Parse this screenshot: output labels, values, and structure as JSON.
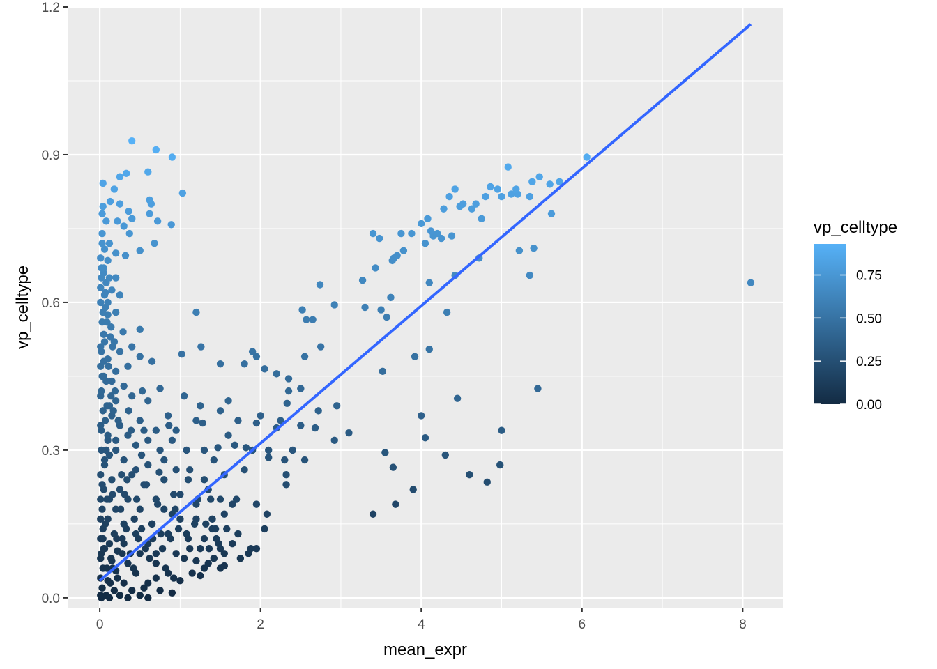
{
  "chart_data": {
    "type": "scatter",
    "title": "",
    "xlabel": "mean_expr",
    "ylabel": "vp_celltype",
    "xlim": [
      -0.4,
      8.5
    ],
    "ylim": [
      -0.02,
      1.2
    ],
    "x_ticks": [
      {
        "value": 0,
        "label": "0"
      },
      {
        "value": 2,
        "label": "2"
      },
      {
        "value": 4,
        "label": "4"
      },
      {
        "value": 6,
        "label": "6"
      },
      {
        "value": 8,
        "label": "8"
      }
    ],
    "y_ticks": [
      {
        "value": 0.0,
        "label": "0.0"
      },
      {
        "value": 0.3,
        "label": "0.3"
      },
      {
        "value": 0.6,
        "label": "0.6"
      },
      {
        "value": 0.9,
        "label": "0.9"
      },
      {
        "value": 1.2,
        "label": "1.2"
      }
    ],
    "grid": true,
    "panel_background": "#ebebeb",
    "point_color_low": "#132b43",
    "point_color_high": "#56b1f7",
    "legend": {
      "title": "vp_celltype",
      "placement": "right",
      "limits": [
        0.0,
        0.93
      ],
      "ticks": [
        {
          "value": 0.0,
          "label": "0.00"
        },
        {
          "value": 0.25,
          "label": "0.25"
        },
        {
          "value": 0.5,
          "label": "0.50"
        },
        {
          "value": 0.75,
          "label": "0.75"
        }
      ]
    },
    "trend_line": {
      "color": "#3366ff",
      "start": {
        "x": 0.0,
        "y": 0.035
      },
      "end": {
        "x": 8.1,
        "y": 1.165
      }
    },
    "points": [
      [
        0.4,
        0.928
      ],
      [
        0.7,
        0.91
      ],
      [
        0.9,
        0.895
      ],
      [
        0.33,
        0.862
      ],
      [
        0.6,
        0.865
      ],
      [
        0.25,
        0.855
      ],
      [
        0.04,
        0.842
      ],
      [
        0.18,
        0.83
      ],
      [
        1.03,
        0.822
      ],
      [
        0.13,
        0.805
      ],
      [
        0.62,
        0.808
      ],
      [
        0.25,
        0.8
      ],
      [
        0.04,
        0.795
      ],
      [
        0.64,
        0.8
      ],
      [
        0.03,
        0.78
      ],
      [
        0.36,
        0.785
      ],
      [
        0.4,
        0.77
      ],
      [
        0.62,
        0.78
      ],
      [
        0.72,
        0.765
      ],
      [
        0.22,
        0.765
      ],
      [
        0.08,
        0.765
      ],
      [
        0.3,
        0.755
      ],
      [
        0.89,
        0.758
      ],
      [
        0.37,
        0.74
      ],
      [
        0.03,
        0.74
      ],
      [
        0.68,
        0.72
      ],
      [
        0.12,
        0.72
      ],
      [
        0.06,
        0.708
      ],
      [
        0.5,
        0.705
      ],
      [
        0.2,
        0.7
      ],
      [
        0.32,
        0.695
      ],
      [
        0.01,
        0.69
      ],
      [
        0.1,
        0.685
      ],
      [
        0.02,
        0.67
      ],
      [
        0.05,
        0.66
      ],
      [
        0.12,
        0.65
      ],
      [
        0.2,
        0.65
      ],
      [
        0.08,
        0.64
      ],
      [
        0.01,
        0.63
      ],
      [
        0.15,
        0.625
      ],
      [
        0.06,
        0.615
      ],
      [
        0.25,
        0.615
      ],
      [
        0.01,
        0.6
      ],
      [
        0.07,
        0.59
      ],
      [
        0.2,
        0.58
      ],
      [
        0.1,
        0.575
      ],
      [
        0.03,
        0.56
      ],
      [
        0.14,
        0.55
      ],
      [
        0.5,
        0.545
      ],
      [
        0.29,
        0.54
      ],
      [
        0.05,
        0.535
      ],
      [
        0.18,
        0.52
      ],
      [
        0.01,
        0.51
      ],
      [
        0.4,
        0.51
      ],
      [
        0.25,
        0.5
      ],
      [
        0.5,
        0.49
      ],
      [
        0.1,
        0.485
      ],
      [
        0.65,
        0.48
      ],
      [
        0.01,
        0.47
      ],
      [
        0.2,
        0.46
      ],
      [
        0.35,
        0.47
      ],
      [
        0.05,
        0.45
      ],
      [
        0.15,
        0.44
      ],
      [
        0.3,
        0.43
      ],
      [
        0.53,
        0.42
      ],
      [
        0.75,
        0.425
      ],
      [
        0.01,
        0.41
      ],
      [
        0.2,
        0.4
      ],
      [
        0.4,
        0.41
      ],
      [
        0.09,
        0.39
      ],
      [
        0.6,
        0.4
      ],
      [
        0.36,
        0.38
      ],
      [
        0.15,
        0.37
      ],
      [
        0.5,
        0.36
      ],
      [
        0.85,
        0.37
      ],
      [
        0.01,
        0.35
      ],
      [
        0.25,
        0.35
      ],
      [
        0.55,
        0.34
      ],
      [
        0.7,
        0.34
      ],
      [
        0.1,
        0.32
      ],
      [
        0.35,
        0.33
      ],
      [
        0.9,
        0.32
      ],
      [
        0.02,
        0.3
      ],
      [
        0.2,
        0.3
      ],
      [
        0.45,
        0.31
      ],
      [
        0.75,
        0.3
      ],
      [
        0.06,
        0.28
      ],
      [
        0.3,
        0.28
      ],
      [
        0.6,
        0.27
      ],
      [
        0.95,
        0.26
      ],
      [
        0.01,
        0.25
      ],
      [
        0.15,
        0.24
      ],
      [
        0.4,
        0.25
      ],
      [
        0.8,
        0.24
      ],
      [
        0.05,
        0.22
      ],
      [
        0.25,
        0.22
      ],
      [
        0.55,
        0.23
      ],
      [
        1.1,
        0.24
      ],
      [
        0.01,
        0.2
      ],
      [
        0.12,
        0.2
      ],
      [
        0.35,
        0.2
      ],
      [
        0.7,
        0.2
      ],
      [
        1.0,
        0.21
      ],
      [
        0.03,
        0.18
      ],
      [
        0.2,
        0.18
      ],
      [
        0.5,
        0.18
      ],
      [
        0.9,
        0.17
      ],
      [
        0.01,
        0.16
      ],
      [
        0.1,
        0.16
      ],
      [
        0.3,
        0.15
      ],
      [
        0.65,
        0.15
      ],
      [
        1.2,
        0.16
      ],
      [
        0.04,
        0.14
      ],
      [
        0.18,
        0.13
      ],
      [
        0.45,
        0.13
      ],
      [
        0.85,
        0.13
      ],
      [
        1.4,
        0.14
      ],
      [
        0.01,
        0.12
      ],
      [
        0.12,
        0.11
      ],
      [
        0.3,
        0.11
      ],
      [
        0.6,
        0.11
      ],
      [
        1.1,
        0.12
      ],
      [
        0.06,
        0.1
      ],
      [
        0.22,
        0.095
      ],
      [
        0.5,
        0.09
      ],
      [
        0.95,
        0.09
      ],
      [
        1.5,
        0.1
      ],
      [
        0.01,
        0.08
      ],
      [
        0.15,
        0.075
      ],
      [
        0.35,
        0.07
      ],
      [
        0.7,
        0.07
      ],
      [
        1.2,
        0.075
      ],
      [
        0.04,
        0.06
      ],
      [
        0.2,
        0.055
      ],
      [
        0.45,
        0.05
      ],
      [
        0.85,
        0.05
      ],
      [
        1.3,
        0.06
      ],
      [
        0.01,
        0.04
      ],
      [
        0.1,
        0.035
      ],
      [
        0.3,
        0.03
      ],
      [
        0.6,
        0.03
      ],
      [
        1.0,
        0.035
      ],
      [
        0.03,
        0.02
      ],
      [
        0.18,
        0.015
      ],
      [
        0.4,
        0.015
      ],
      [
        0.75,
        0.015
      ],
      [
        0.01,
        0.005
      ],
      [
        0.08,
        0.005
      ],
      [
        0.25,
        0.005
      ],
      [
        0.5,
        0.005
      ],
      [
        0.9,
        0.01
      ],
      [
        0.02,
        0.0
      ],
      [
        0.12,
        0.0
      ],
      [
        0.35,
        0.0
      ],
      [
        0.6,
        0.0
      ],
      [
        0.05,
        0.1
      ],
      [
        0.08,
        0.3
      ],
      [
        0.03,
        0.45
      ],
      [
        0.06,
        0.52
      ],
      [
        0.09,
        0.2
      ],
      [
        0.14,
        0.08
      ],
      [
        0.22,
        0.04
      ],
      [
        0.28,
        0.09
      ],
      [
        0.33,
        0.14
      ],
      [
        0.42,
        0.06
      ],
      [
        0.48,
        0.12
      ],
      [
        0.55,
        0.02
      ],
      [
        0.62,
        0.08
      ],
      [
        0.7,
        0.04
      ],
      [
        0.78,
        0.1
      ],
      [
        0.82,
        0.06
      ],
      [
        0.92,
        0.04
      ],
      [
        0.98,
        0.14
      ],
      [
        1.05,
        0.08
      ],
      [
        1.15,
        0.05
      ],
      [
        1.25,
        0.1
      ],
      [
        1.35,
        0.07
      ],
      [
        1.45,
        0.12
      ],
      [
        1.55,
        0.09
      ],
      [
        1.65,
        0.11
      ],
      [
        1.75,
        0.08
      ],
      [
        1.85,
        0.09
      ],
      [
        1.95,
        0.1
      ],
      [
        1.02,
        0.495
      ],
      [
        1.2,
        0.58
      ],
      [
        1.26,
        0.51
      ],
      [
        1.5,
        0.475
      ],
      [
        1.05,
        0.41
      ],
      [
        1.2,
        0.36
      ],
      [
        1.25,
        0.39
      ],
      [
        1.28,
        0.355
      ],
      [
        1.5,
        0.38
      ],
      [
        1.6,
        0.4
      ],
      [
        1.8,
        0.475
      ],
      [
        1.9,
        0.5
      ],
      [
        1.95,
        0.49
      ],
      [
        2.05,
        0.465
      ],
      [
        2.2,
        0.455
      ],
      [
        2.35,
        0.42
      ],
      [
        2.35,
        0.445
      ],
      [
        2.5,
        0.425
      ],
      [
        2.55,
        0.49
      ],
      [
        2.52,
        0.585
      ],
      [
        2.57,
        0.565
      ],
      [
        2.65,
        0.565
      ],
      [
        2.75,
        0.51
      ],
      [
        2.74,
        0.636
      ],
      [
        2.92,
        0.595
      ],
      [
        3.27,
        0.645
      ],
      [
        3.3,
        0.59
      ],
      [
        3.4,
        0.74
      ],
      [
        3.43,
        0.67
      ],
      [
        3.48,
        0.73
      ],
      [
        3.5,
        0.585
      ],
      [
        3.52,
        0.46
      ],
      [
        3.57,
        0.57
      ],
      [
        3.62,
        0.61
      ],
      [
        3.64,
        0.685
      ],
      [
        3.66,
        0.69
      ],
      [
        3.7,
        0.695
      ],
      [
        3.75,
        0.74
      ],
      [
        3.78,
        0.705
      ],
      [
        3.88,
        0.74
      ],
      [
        3.92,
        0.49
      ],
      [
        4.0,
        0.76
      ],
      [
        4.05,
        0.72
      ],
      [
        4.08,
        0.77
      ],
      [
        4.12,
        0.745
      ],
      [
        4.15,
        0.735
      ],
      [
        4.1,
        0.505
      ],
      [
        4.2,
        0.74
      ],
      [
        4.25,
        0.73
      ],
      [
        4.28,
        0.79
      ],
      [
        4.32,
        0.58
      ],
      [
        4.35,
        0.815
      ],
      [
        4.38,
        0.735
      ],
      [
        4.42,
        0.83
      ],
      [
        4.48,
        0.795
      ],
      [
        4.52,
        0.8
      ],
      [
        4.63,
        0.79
      ],
      [
        4.68,
        0.8
      ],
      [
        4.72,
        0.69
      ],
      [
        4.75,
        0.77
      ],
      [
        4.8,
        0.815
      ],
      [
        4.86,
        0.835
      ],
      [
        4.95,
        0.83
      ],
      [
        5.0,
        0.815
      ],
      [
        5.08,
        0.875
      ],
      [
        5.12,
        0.82
      ],
      [
        5.18,
        0.83
      ],
      [
        5.2,
        0.82
      ],
      [
        5.35,
        0.815
      ],
      [
        5.38,
        0.845
      ],
      [
        5.47,
        0.855
      ],
      [
        5.6,
        0.84
      ],
      [
        5.72,
        0.845
      ],
      [
        5.62,
        0.78
      ],
      [
        5.22,
        0.705
      ],
      [
        5.4,
        0.71
      ],
      [
        5.35,
        0.655
      ],
      [
        6.06,
        0.895
      ],
      [
        8.1,
        0.64
      ],
      [
        4.1,
        0.64
      ],
      [
        4.42,
        0.655
      ],
      [
        4.45,
        0.405
      ],
      [
        4.0,
        0.37
      ],
      [
        4.05,
        0.325
      ],
      [
        4.3,
        0.29
      ],
      [
        5.45,
        0.425
      ],
      [
        5.0,
        0.34
      ],
      [
        4.6,
        0.25
      ],
      [
        4.82,
        0.235
      ],
      [
        4.98,
        0.27
      ],
      [
        3.9,
        0.22
      ],
      [
        3.68,
        0.19
      ],
      [
        3.4,
        0.17
      ],
      [
        3.55,
        0.295
      ],
      [
        3.65,
        0.265
      ],
      [
        3.1,
        0.335
      ],
      [
        2.92,
        0.32
      ],
      [
        2.95,
        0.39
      ],
      [
        2.72,
        0.38
      ],
      [
        2.68,
        0.345
      ],
      [
        2.55,
        0.28
      ],
      [
        2.33,
        0.395
      ],
      [
        2.5,
        0.35
      ],
      [
        2.25,
        0.36
      ],
      [
        2.2,
        0.345
      ],
      [
        2.4,
        0.3
      ],
      [
        2.3,
        0.28
      ],
      [
        2.32,
        0.23
      ],
      [
        2.32,
        0.25
      ],
      [
        2.1,
        0.3
      ],
      [
        2.1,
        0.285
      ],
      [
        2.0,
        0.37
      ],
      [
        1.95,
        0.355
      ],
      [
        1.9,
        0.3
      ],
      [
        1.82,
        0.305
      ],
      [
        1.72,
        0.36
      ],
      [
        1.68,
        0.31
      ],
      [
        1.6,
        0.33
      ],
      [
        1.55,
        0.25
      ],
      [
        1.8,
        0.26
      ],
      [
        1.95,
        0.19
      ],
      [
        2.08,
        0.17
      ],
      [
        1.88,
        0.1
      ],
      [
        2.05,
        0.14
      ],
      [
        1.72,
        0.13
      ],
      [
        1.7,
        0.2
      ],
      [
        1.65,
        0.19
      ],
      [
        1.42,
        0.28
      ],
      [
        1.35,
        0.22
      ],
      [
        1.3,
        0.24
      ],
      [
        1.38,
        0.2
      ],
      [
        1.2,
        0.19
      ],
      [
        1.12,
        0.26
      ],
      [
        1.08,
        0.3
      ],
      [
        1.3,
        0.3
      ],
      [
        1.47,
        0.305
      ],
      [
        1.5,
        0.2
      ],
      [
        1.55,
        0.17
      ],
      [
        1.58,
        0.14
      ],
      [
        1.48,
        0.11
      ],
      [
        1.5,
        0.06
      ],
      [
        1.55,
        0.065
      ],
      [
        1.42,
        0.08
      ],
      [
        1.25,
        0.045
      ],
      [
        1.32,
        0.15
      ],
      [
        0.74,
        0.255
      ],
      [
        0.86,
        0.35
      ],
      [
        0.95,
        0.34
      ],
      [
        0.8,
        0.28
      ],
      [
        0.92,
        0.21
      ],
      [
        0.72,
        0.19
      ],
      [
        0.6,
        0.32
      ],
      [
        0.52,
        0.29
      ],
      [
        0.45,
        0.26
      ],
      [
        0.39,
        0.34
      ],
      [
        0.58,
        0.23
      ],
      [
        0.65,
        0.15
      ],
      [
        0.2,
        0.32
      ],
      [
        0.27,
        0.25
      ],
      [
        0.16,
        0.21
      ],
      [
        0.12,
        0.29
      ],
      [
        0.1,
        0.33
      ],
      [
        0.23,
        0.36
      ],
      [
        0.19,
        0.42
      ],
      [
        0.04,
        0.38
      ],
      [
        0.02,
        0.34
      ],
      [
        0.06,
        0.27
      ],
      [
        0.03,
        0.23
      ],
      [
        0.07,
        0.15
      ],
      [
        0.04,
        0.12
      ],
      [
        0.02,
        0.09
      ],
      [
        0.09,
        0.06
      ],
      [
        0.13,
        0.03
      ],
      [
        0.16,
        0.06
      ],
      [
        0.21,
        0.12
      ],
      [
        0.26,
        0.18
      ],
      [
        0.31,
        0.21
      ],
      [
        0.34,
        0.24
      ],
      [
        0.28,
        0.12
      ],
      [
        0.38,
        0.09
      ],
      [
        0.43,
        0.16
      ],
      [
        0.46,
        0.2
      ],
      [
        0.52,
        0.14
      ],
      [
        0.57,
        0.1
      ],
      [
        0.66,
        0.12
      ],
      [
        0.7,
        0.09
      ],
      [
        0.76,
        0.13
      ],
      [
        0.8,
        0.18
      ],
      [
        0.88,
        0.12
      ],
      [
        0.94,
        0.18
      ],
      [
        1.0,
        0.16
      ],
      [
        1.08,
        0.13
      ],
      [
        1.12,
        0.1
      ],
      [
        1.18,
        0.15
      ],
      [
        1.22,
        0.2
      ],
      [
        1.3,
        0.12
      ],
      [
        1.36,
        0.1
      ],
      [
        1.4,
        0.16
      ],
      [
        1.44,
        0.14
      ],
      [
        0.02,
        0.5
      ],
      [
        0.05,
        0.48
      ],
      [
        0.08,
        0.44
      ],
      [
        0.11,
        0.47
      ],
      [
        0.14,
        0.41
      ],
      [
        0.17,
        0.38
      ],
      [
        0.07,
        0.36
      ],
      [
        0.12,
        0.39
      ],
      [
        0.02,
        0.42
      ],
      [
        0.09,
        0.56
      ],
      [
        0.13,
        0.53
      ],
      [
        0.16,
        0.51
      ],
      [
        0.04,
        0.58
      ],
      [
        0.07,
        0.62
      ],
      [
        0.1,
        0.6
      ],
      [
        0.02,
        0.65
      ],
      [
        0.05,
        0.67
      ],
      [
        0.03,
        0.72
      ]
    ]
  }
}
